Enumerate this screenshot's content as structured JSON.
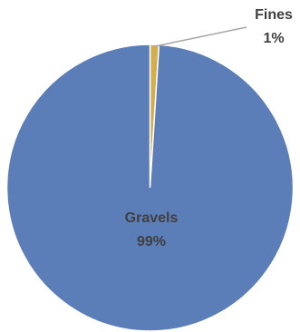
{
  "chart_data": {
    "type": "pie",
    "title": "",
    "categories": [
      "Fines",
      "Gravels"
    ],
    "values": [
      1,
      99
    ],
    "colors": [
      "#D4AE4C",
      "#5B7DB8"
    ],
    "data_labels": [
      {
        "name": "Fines",
        "percent": "1%"
      },
      {
        "name": "Gravels",
        "percent": "99%"
      }
    ],
    "start_angle_deg": 0,
    "direction": "clockwise",
    "legend": "none",
    "label_color": "#404040",
    "leader_line_color": "#A6A6A6",
    "slice_border_color": "#ffffff"
  }
}
